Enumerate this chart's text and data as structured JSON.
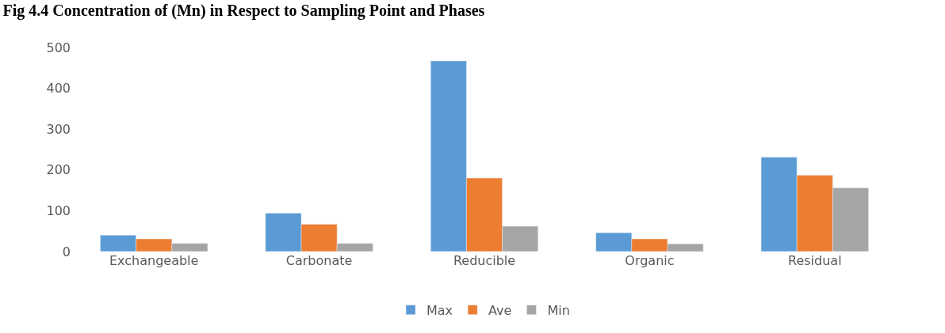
{
  "chart_data": {
    "type": "bar",
    "title": "Fig 4.4 Concentration of (Mn) in Respect to Sampling Point and Phases",
    "categories": [
      "Exchangeable",
      "Carbonate",
      "Reducible",
      "Organic",
      "Residual"
    ],
    "series": [
      {
        "name": "Max",
        "color": "#5b9bd5",
        "values": [
          40,
          94,
          467,
          46,
          231
        ]
      },
      {
        "name": "Ave",
        "color": "#ed7d31",
        "values": [
          31,
          67,
          180,
          31,
          187
        ]
      },
      {
        "name": "Min",
        "color": "#a5a5a5",
        "values": [
          20,
          20,
          62,
          19,
          156
        ]
      }
    ],
    "ylim": [
      0,
      500
    ],
    "yticks": [
      0,
      100,
      200,
      300,
      400,
      500
    ],
    "legend": "bottom"
  }
}
